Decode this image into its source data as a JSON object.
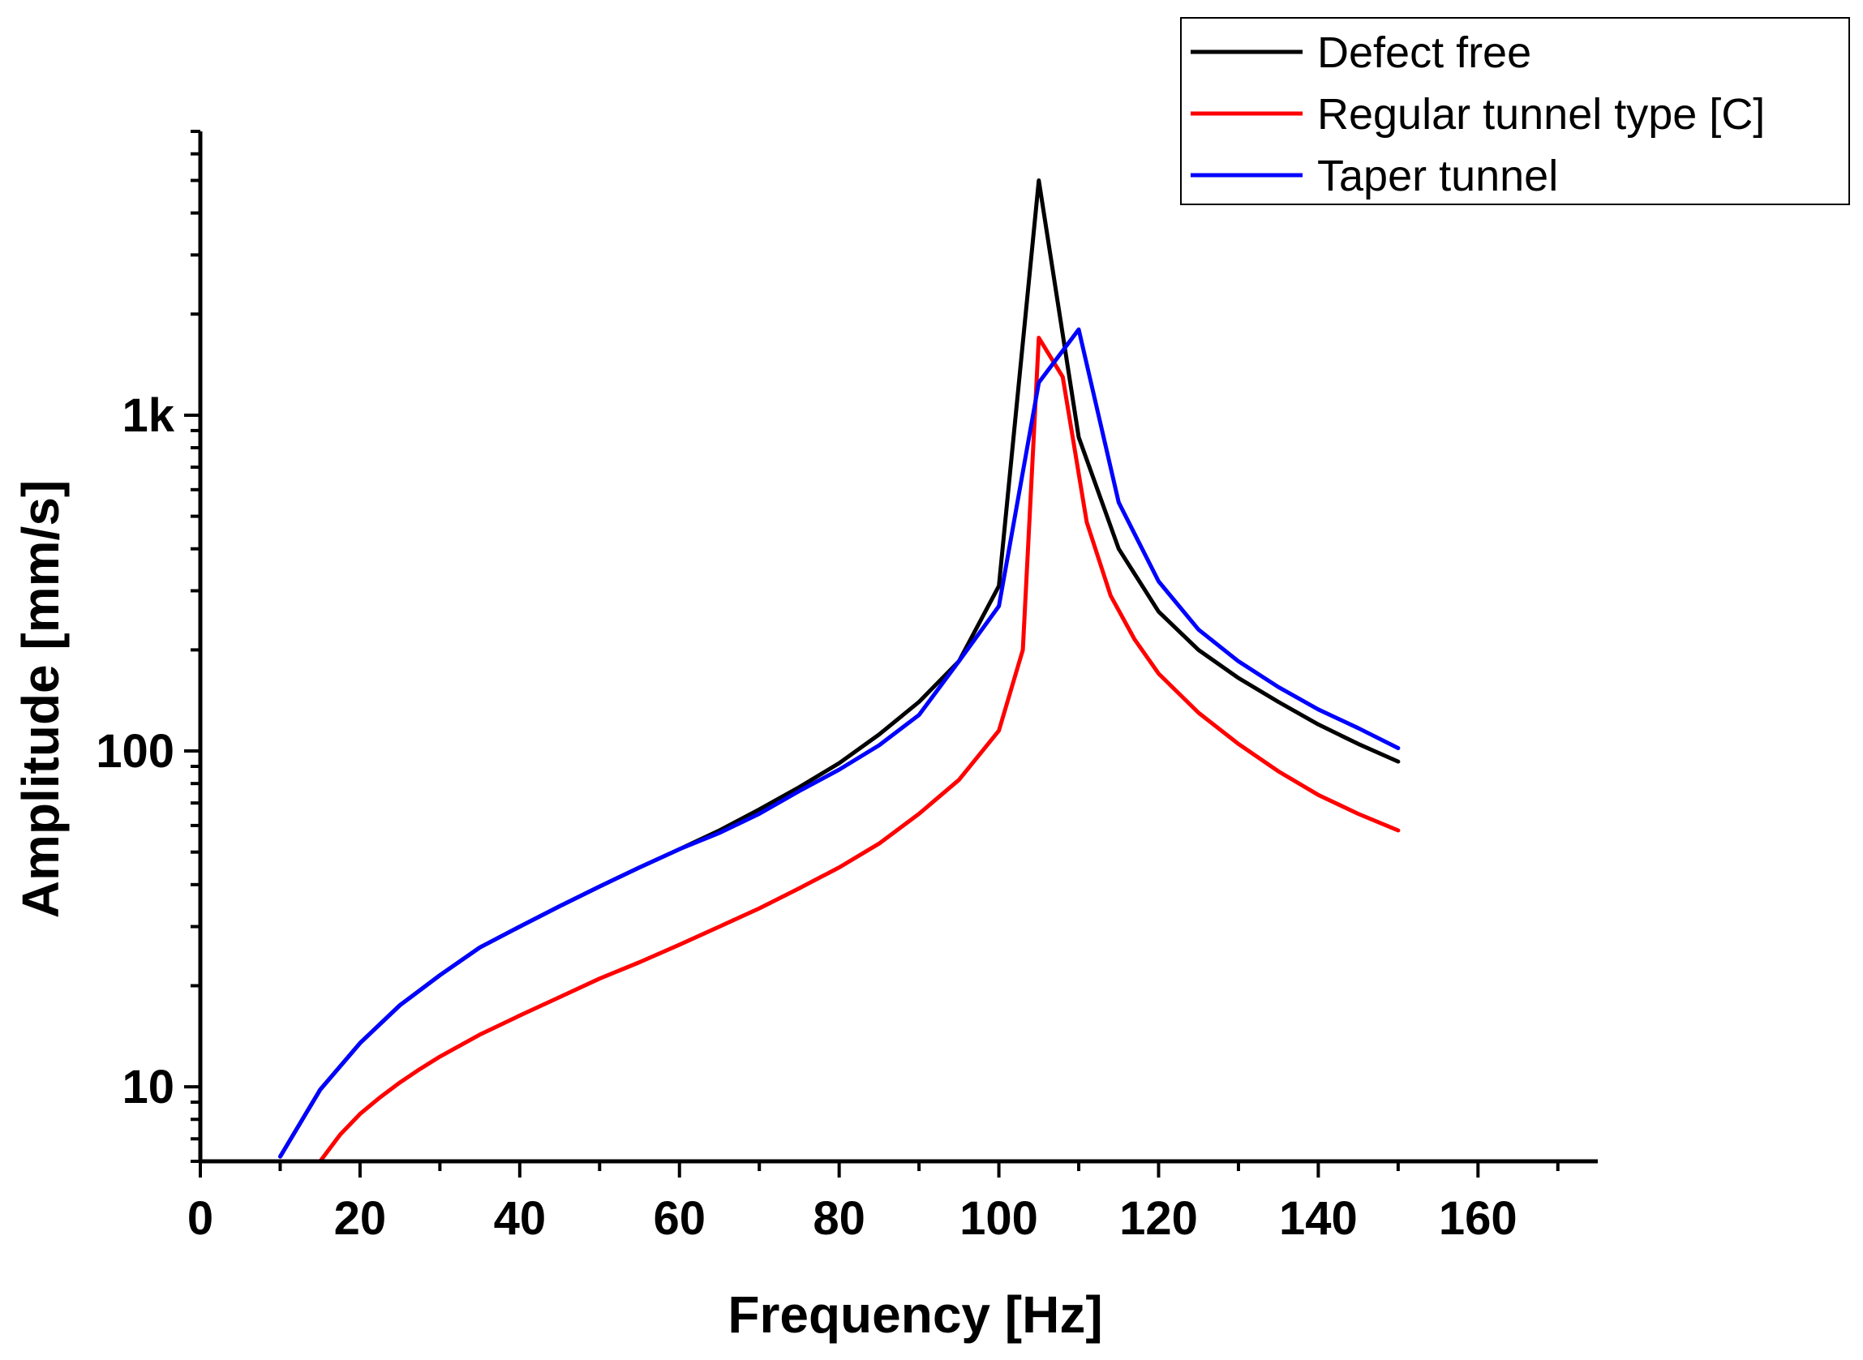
{
  "chart_data": {
    "type": "line",
    "title": "",
    "xlabel": "Frequency [Hz]",
    "ylabel": "Amplitude [mm/s]",
    "xlim": [
      0,
      175
    ],
    "ylim": [
      6,
      7000
    ],
    "yscale": "log",
    "x_ticks": [
      0,
      20,
      40,
      60,
      80,
      100,
      120,
      140,
      160
    ],
    "x_tick_labels": [
      "0",
      "20",
      "40",
      "60",
      "80",
      "100",
      "120",
      "140",
      "160"
    ],
    "y_ticks": [
      10,
      100,
      1000
    ],
    "y_tick_labels": [
      "10",
      "100",
      "1k"
    ],
    "legend_position": "top-right",
    "series": [
      {
        "name": "Defect free",
        "color": "#000000",
        "x": [
          10,
          15,
          20,
          25,
          30,
          35,
          40,
          45,
          50,
          55,
          60,
          65,
          70,
          75,
          80,
          85,
          90,
          95,
          100,
          105,
          110,
          115,
          120,
          125,
          130,
          135,
          140,
          145,
          150
        ],
        "values": [
          6.2,
          9.8,
          13.5,
          17.5,
          21.5,
          26,
          30,
          34.5,
          39.5,
          45,
          51,
          58,
          67,
          78,
          92,
          112,
          140,
          185,
          310,
          5000,
          860,
          400,
          260,
          200,
          165,
          140,
          120,
          105,
          93
        ]
      },
      {
        "name": "Regular tunnel type [C]",
        "color": "#ff0000",
        "x": [
          15,
          17.5,
          20,
          22.5,
          25,
          27.5,
          30,
          35,
          40,
          45,
          50,
          55,
          60,
          65,
          70,
          75,
          80,
          85,
          90,
          95,
          100,
          103,
          105,
          108,
          111,
          114,
          117,
          120,
          125,
          130,
          135,
          140,
          145,
          150
        ],
        "values": [
          6,
          7.2,
          8.3,
          9.3,
          10.3,
          11.3,
          12.3,
          14.3,
          16.3,
          18.5,
          21,
          23.5,
          26.5,
          30,
          34,
          39,
          45,
          53,
          65,
          82,
          115,
          200,
          1700,
          1300,
          480,
          290,
          215,
          170,
          130,
          105,
          87,
          74,
          65,
          58
        ]
      },
      {
        "name": "Taper tunnel",
        "color": "#0000ff",
        "x": [
          10,
          15,
          20,
          25,
          30,
          35,
          40,
          45,
          50,
          55,
          60,
          65,
          70,
          75,
          80,
          85,
          90,
          95,
          100,
          105,
          110,
          115,
          120,
          125,
          130,
          135,
          140,
          145,
          150
        ],
        "values": [
          6.2,
          9.8,
          13.5,
          17.5,
          21.5,
          26,
          30,
          34.5,
          39.5,
          45,
          51,
          57,
          65,
          76,
          88,
          104,
          128,
          185,
          270,
          1250,
          1800,
          550,
          320,
          230,
          185,
          155,
          133,
          117,
          102
        ]
      }
    ]
  }
}
